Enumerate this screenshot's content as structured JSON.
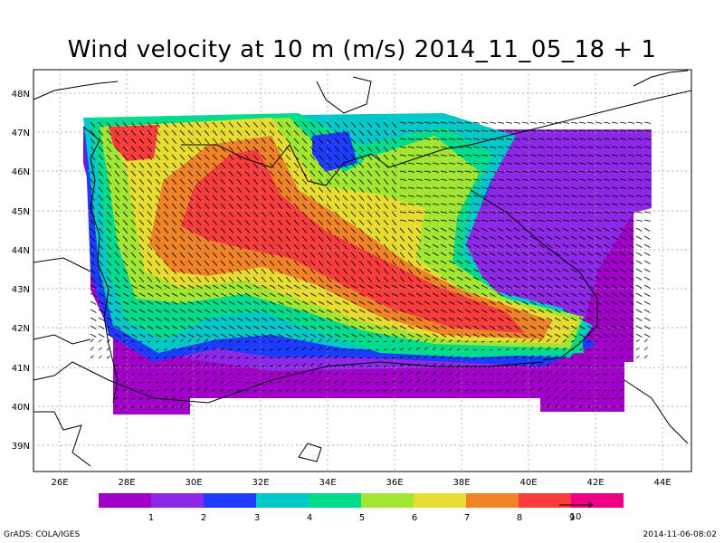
{
  "title": "Wind velocity at 10 m (m/s) 2014_11_05_18 + 1",
  "footer": {
    "left": "GrADS: COLA/IGES",
    "right": "2014-11-06-08:02"
  },
  "axes": {
    "lon_labels": [
      "26E",
      "28E",
      "30E",
      "32E",
      "34E",
      "36E",
      "38E",
      "40E",
      "42E",
      "44E"
    ],
    "lat_labels": [
      "48N",
      "47N",
      "46N",
      "45N",
      "44N",
      "43N",
      "42N",
      "41N",
      "40N",
      "39N"
    ]
  },
  "colorbar": {
    "colors": [
      "#a000c8",
      "#8c28e6",
      "#1e3cff",
      "#00c8c8",
      "#00dc8c",
      "#a0e632",
      "#e6dc32",
      "#f08228",
      "#fa3c3c",
      "#f00082"
    ],
    "labels": [
      "1",
      "2",
      "3",
      "4",
      "5",
      "6",
      "7",
      "8",
      "9"
    ],
    "reference_vector_label": "10"
  }
}
